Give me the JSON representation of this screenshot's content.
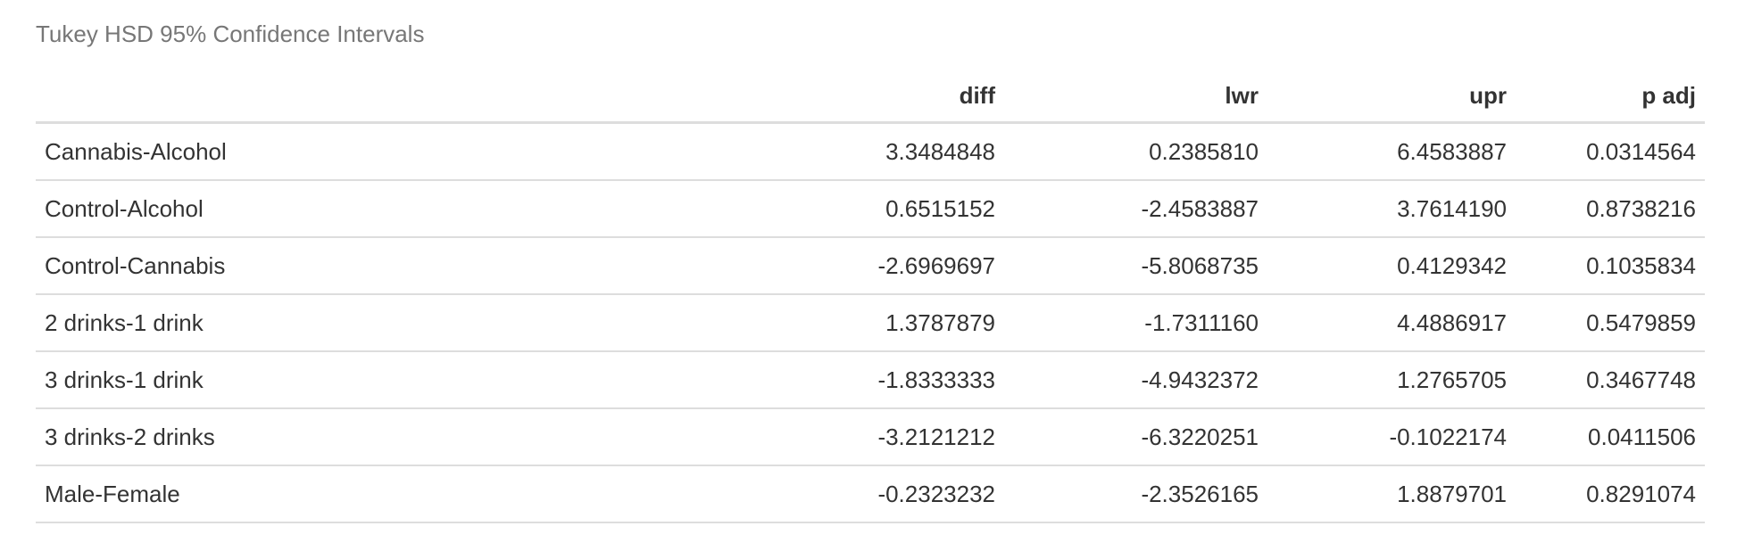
{
  "caption": "Tukey HSD 95% Confidence Intervals",
  "table": {
    "columns": [
      "",
      "diff",
      "lwr",
      "upr",
      "p adj"
    ],
    "rows": [
      [
        "Cannabis-Alcohol",
        "3.3484848",
        "0.2385810",
        "6.4583887",
        "0.0314564"
      ],
      [
        "Control-Alcohol",
        "0.6515152",
        "-2.4583887",
        "3.7614190",
        "0.8738216"
      ],
      [
        "Control-Cannabis",
        "-2.6969697",
        "-5.8068735",
        "0.4129342",
        "0.1035834"
      ],
      [
        "2 drinks-1 drink",
        "1.3787879",
        "-1.7311160",
        "4.4886917",
        "0.5479859"
      ],
      [
        "3 drinks-1 drink",
        "-1.8333333",
        "-4.9432372",
        "1.2765705",
        "0.3467748"
      ],
      [
        "3 drinks-2 drinks",
        "-3.2121212",
        "-6.3220251",
        "-0.1022174",
        "0.0411506"
      ],
      [
        "Male-Female",
        "-0.2323232",
        "-2.3526165",
        "1.8879701",
        "0.8291074"
      ]
    ]
  }
}
